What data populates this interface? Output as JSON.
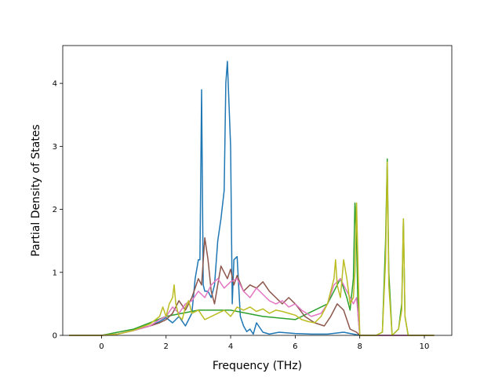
{
  "chart_data": {
    "type": "line",
    "title": "",
    "xlabel": "Frequency (THz)",
    "ylabel": "Partial Density of States",
    "xlim": [
      -1.2,
      10.85
    ],
    "ylim": [
      0,
      4.6
    ],
    "xticks": [
      0,
      2,
      4,
      6,
      8,
      10
    ],
    "yticks": [
      0,
      1,
      2,
      3,
      4
    ],
    "grid": false,
    "legend": "none",
    "series": [
      {
        "color": "#1f77b4",
        "x": [
          -1,
          0,
          0.5,
          1,
          1.5,
          1.8,
          2,
          2.2,
          2.4,
          2.6,
          2.8,
          2.9,
          3,
          3.05,
          3.1,
          3.15,
          3.2,
          3.3,
          3.4,
          3.5,
          3.6,
          3.7,
          3.8,
          3.85,
          3.9,
          4,
          4.05,
          4.1,
          4.2,
          4.3,
          4.4,
          4.5,
          4.6,
          4.7,
          4.8,
          5,
          5.2,
          5.5,
          6,
          6.5,
          7,
          7.5,
          7.8,
          8,
          10.3
        ],
        "y": [
          0,
          0,
          0.02,
          0.08,
          0.15,
          0.22,
          0.28,
          0.2,
          0.3,
          0.15,
          0.35,
          0.9,
          1.2,
          1.2,
          3.9,
          0.8,
          0.7,
          0.7,
          0.6,
          0.8,
          1.5,
          1.85,
          2.3,
          4.0,
          4.35,
          3.0,
          0.5,
          1.2,
          1.25,
          0.3,
          0.15,
          0.06,
          0.1,
          0.02,
          0.2,
          0.05,
          0.02,
          0.05,
          0.03,
          0.02,
          0.02,
          0.05,
          0.02,
          0,
          0
        ]
      },
      {
        "color": "#2ca02c",
        "x": [
          -1,
          0,
          1,
          2,
          3,
          4,
          5,
          6,
          7,
          7.4,
          7.6,
          7.7,
          7.8,
          7.85,
          7.9,
          7.95,
          8,
          8.5,
          8.7,
          8.8,
          8.85,
          8.9,
          9,
          9.2,
          9.3,
          9.35,
          9.4,
          9.5,
          10.3
        ],
        "y": [
          0,
          0,
          0.1,
          0.3,
          0.4,
          0.4,
          0.3,
          0.25,
          0.5,
          0.9,
          0.6,
          0.4,
          0.9,
          2.1,
          1.5,
          0.3,
          0,
          0,
          0.05,
          1.5,
          2.8,
          1.0,
          0,
          0.1,
          0.5,
          1.85,
          0.3,
          0,
          0
        ]
      },
      {
        "color": "#8c564b",
        "x": [
          -1,
          0,
          0.5,
          1,
          1.5,
          1.8,
          2,
          2.2,
          2.4,
          2.6,
          2.8,
          3,
          3.1,
          3.2,
          3.3,
          3.4,
          3.5,
          3.6,
          3.7,
          3.8,
          3.9,
          4,
          4.1,
          4.2,
          4.4,
          4.6,
          4.8,
          5,
          5.2,
          5.4,
          5.6,
          5.8,
          6,
          6.3,
          6.6,
          6.9,
          7.1,
          7.3,
          7.5,
          7.7,
          7.9,
          8,
          10.3
        ],
        "y": [
          0,
          0,
          0.02,
          0.08,
          0.15,
          0.2,
          0.25,
          0.35,
          0.55,
          0.4,
          0.6,
          0.9,
          0.8,
          1.55,
          1.2,
          0.7,
          0.5,
          0.8,
          1.1,
          1.0,
          0.9,
          1.05,
          0.8,
          0.95,
          0.7,
          0.8,
          0.75,
          0.85,
          0.7,
          0.6,
          0.5,
          0.6,
          0.5,
          0.3,
          0.2,
          0.15,
          0.3,
          0.5,
          0.4,
          0.1,
          0.05,
          0,
          0
        ]
      },
      {
        "color": "#e377c2",
        "x": [
          -1,
          0,
          0.5,
          1,
          1.5,
          1.8,
          2,
          2.2,
          2.4,
          2.6,
          2.8,
          3,
          3.2,
          3.4,
          3.6,
          3.8,
          4,
          4.2,
          4.4,
          4.6,
          4.8,
          5,
          5.2,
          5.4,
          5.6,
          5.8,
          6,
          6.2,
          6.5,
          6.8,
          7,
          7.2,
          7.4,
          7.6,
          7.8,
          7.9,
          8,
          10.3
        ],
        "y": [
          0,
          0,
          0.02,
          0.08,
          0.15,
          0.25,
          0.3,
          0.45,
          0.35,
          0.5,
          0.55,
          0.7,
          0.6,
          0.8,
          0.9,
          0.75,
          0.85,
          0.9,
          0.7,
          0.6,
          0.75,
          0.65,
          0.55,
          0.5,
          0.55,
          0.45,
          0.5,
          0.4,
          0.3,
          0.35,
          0.5,
          0.8,
          0.9,
          0.7,
          0.5,
          0.6,
          0,
          0
        ]
      },
      {
        "color": "#bcbd22",
        "x": [
          -1,
          0,
          0.5,
          1,
          1.5,
          1.8,
          1.9,
          2,
          2.1,
          2.2,
          2.25,
          2.3,
          2.4,
          2.5,
          2.6,
          2.7,
          2.8,
          3,
          3.2,
          3.4,
          3.6,
          3.8,
          4,
          4.2,
          4.4,
          4.6,
          4.8,
          5,
          5.2,
          5.4,
          5.6,
          5.8,
          6,
          6.2,
          6.4,
          6.6,
          6.8,
          7,
          7.2,
          7.25,
          7.3,
          7.4,
          7.5,
          7.6,
          7.7,
          7.8,
          7.85,
          7.9,
          7.95,
          8,
          8.5,
          8.7,
          8.8,
          8.85,
          8.9,
          9,
          9.2,
          9.3,
          9.35,
          9.4,
          9.5,
          10.3
        ],
        "y": [
          0,
          0,
          0.02,
          0.08,
          0.18,
          0.3,
          0.45,
          0.3,
          0.5,
          0.6,
          0.8,
          0.5,
          0.3,
          0.25,
          0.45,
          0.55,
          0.35,
          0.4,
          0.25,
          0.3,
          0.35,
          0.4,
          0.3,
          0.45,
          0.4,
          0.45,
          0.38,
          0.42,
          0.35,
          0.4,
          0.38,
          0.35,
          0.32,
          0.25,
          0.22,
          0.2,
          0.3,
          0.5,
          0.9,
          1.2,
          0.8,
          0.6,
          1.2,
          0.9,
          0.5,
          0.6,
          1.0,
          2.1,
          1.0,
          0,
          0,
          0.05,
          1.2,
          2.75,
          0.8,
          0,
          0.1,
          0.4,
          1.85,
          0.3,
          0,
          0
        ]
      }
    ]
  }
}
